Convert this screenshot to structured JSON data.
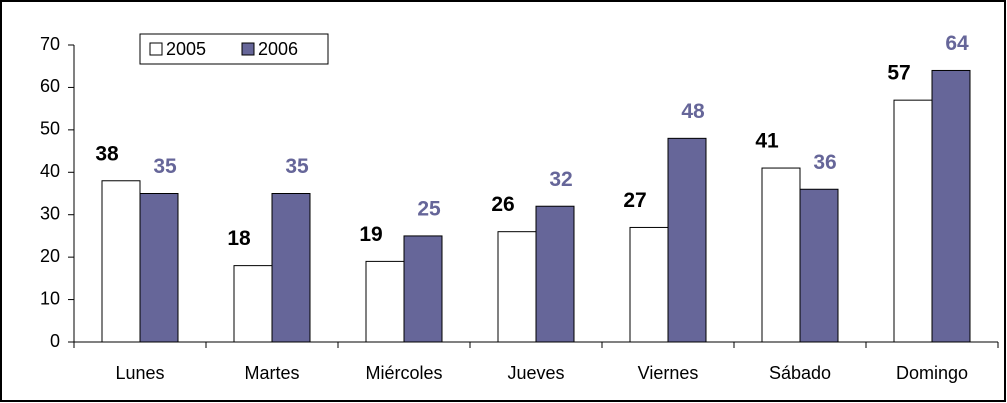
{
  "chart_data": {
    "type": "bar",
    "categories": [
      "Lunes",
      "Martes",
      "Miércoles",
      "Jueves",
      "Viernes",
      "Sábado",
      "Domingo"
    ],
    "series": [
      {
        "name": "2005",
        "color": "#ffffff",
        "values": [
          38,
          18,
          19,
          26,
          27,
          41,
          57
        ]
      },
      {
        "name": "2006",
        "color": "#666699",
        "values": [
          35,
          35,
          25,
          32,
          48,
          36,
          64
        ]
      }
    ],
    "ylim": [
      0,
      70
    ],
    "yticks": [
      0,
      10,
      20,
      30,
      40,
      50,
      60,
      70
    ],
    "grid": false,
    "legend": "top-left"
  }
}
